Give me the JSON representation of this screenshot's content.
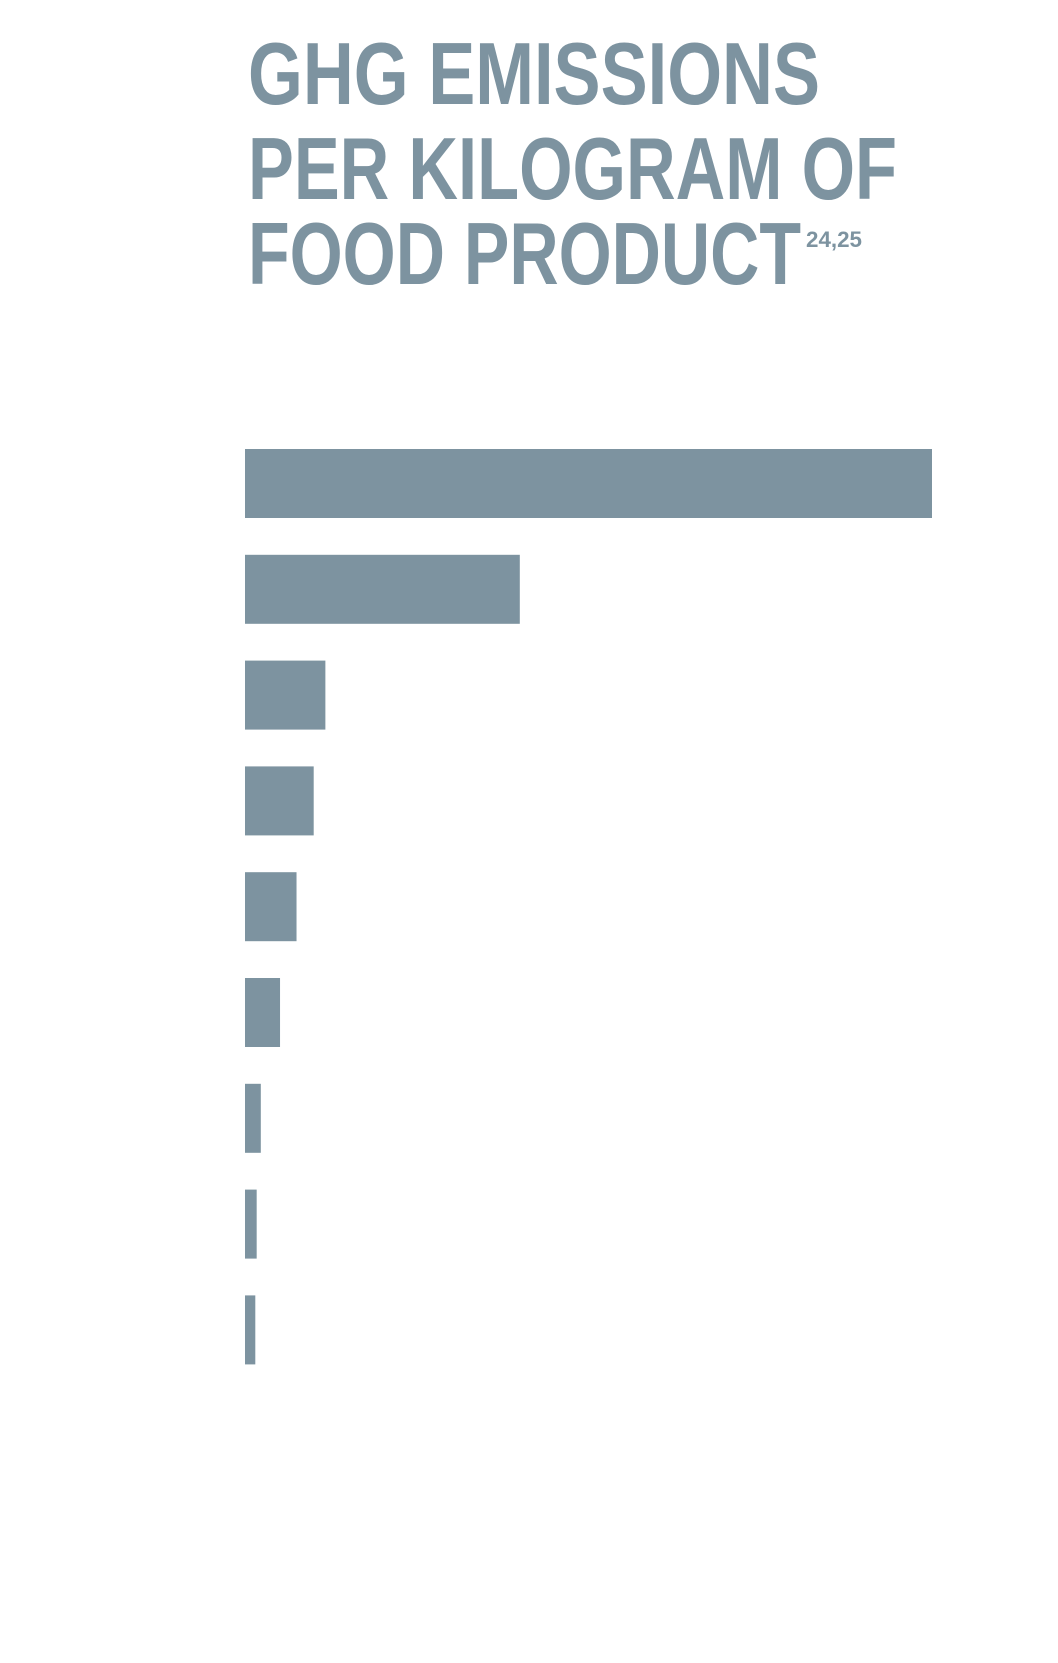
{
  "chart_data": {
    "type": "hbar",
    "title": [
      "GHG EMISSIONS",
      "PER KILOGRAM OF",
      "FOOD PRODUCT"
    ],
    "title_note": "24,25",
    "categories": [
      null,
      null,
      null,
      null,
      null,
      null,
      null,
      null,
      null
    ],
    "values": [
      100,
      40,
      11.7,
      10,
      7.5,
      5.1,
      2.3,
      1.7,
      1.5
    ],
    "color": "#7d93a0",
    "xlim": [
      0,
      100
    ]
  }
}
